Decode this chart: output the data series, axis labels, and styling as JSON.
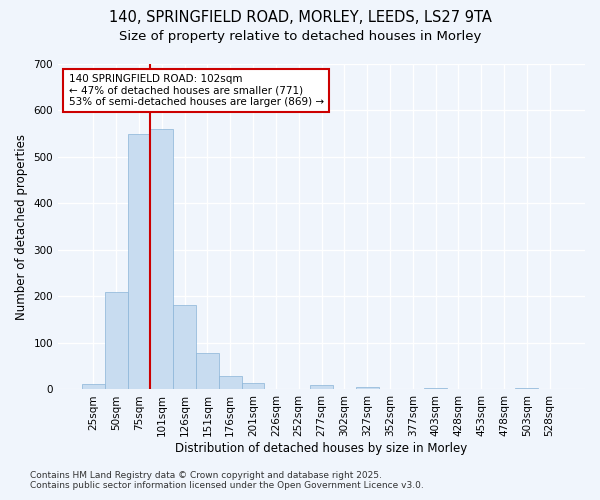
{
  "title_line1": "140, SPRINGFIELD ROAD, MORLEY, LEEDS, LS27 9TA",
  "title_line2": "Size of property relative to detached houses in Morley",
  "xlabel": "Distribution of detached houses by size in Morley",
  "ylabel": "Number of detached properties",
  "bar_color": "#c8dcf0",
  "bar_edge_color": "#8ab4d8",
  "categories": [
    "25sqm",
    "50sqm",
    "75sqm",
    "101sqm",
    "126sqm",
    "151sqm",
    "176sqm",
    "201sqm",
    "226sqm",
    "252sqm",
    "277sqm",
    "302sqm",
    "327sqm",
    "352sqm",
    "377sqm",
    "403sqm",
    "428sqm",
    "453sqm",
    "478sqm",
    "503sqm",
    "528sqm"
  ],
  "values": [
    12,
    210,
    550,
    560,
    182,
    78,
    30,
    13,
    0,
    0,
    10,
    0,
    5,
    0,
    0,
    3,
    0,
    0,
    0,
    4,
    0
  ],
  "ylim": [
    0,
    700
  ],
  "yticks": [
    0,
    100,
    200,
    300,
    400,
    500,
    600,
    700
  ],
  "vline_index": 3,
  "vline_color": "#cc0000",
  "annotation_line1": "140 SPRINGFIELD ROAD: 102sqm",
  "annotation_line2": "← 47% of detached houses are smaller (771)",
  "annotation_line3": "53% of semi-detached houses are larger (869) →",
  "annotation_box_facecolor": "#ffffff",
  "annotation_box_edgecolor": "#cc0000",
  "bg_color": "#f0f5fc",
  "plot_bg_color": "#f0f5fc",
  "grid_color": "#ffffff",
  "footer_line1": "Contains HM Land Registry data © Crown copyright and database right 2025.",
  "footer_line2": "Contains public sector information licensed under the Open Government Licence v3.0.",
  "title_fontsize": 10.5,
  "subtitle_fontsize": 9.5,
  "axis_label_fontsize": 8.5,
  "tick_fontsize": 7.5,
  "annotation_fontsize": 7.5,
  "footer_fontsize": 6.5
}
